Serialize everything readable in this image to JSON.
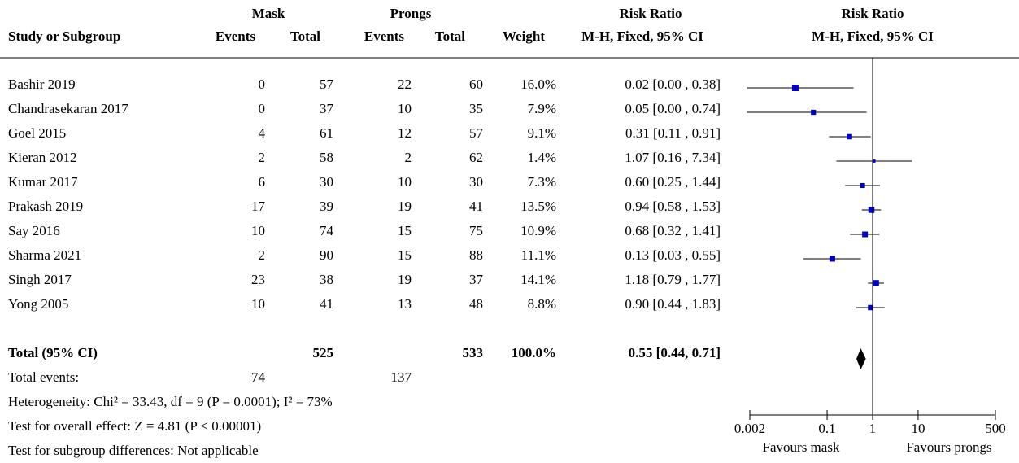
{
  "chart_data": {
    "type": "forest",
    "headers": {
      "group1": "Mask",
      "group2": "Prongs",
      "rr_table": "Risk Ratio",
      "rr_plot": "Risk Ratio",
      "study": "Study or Subgroup",
      "events1": "Events",
      "total1": "Total",
      "events2": "Events",
      "total2": "Total",
      "weight": "Weight",
      "method_table": "M-H, Fixed, 95% CI",
      "method_plot": "M-H, Fixed, 95% CI"
    },
    "studies": [
      {
        "name": "Bashir 2019",
        "events1": 0,
        "total1": 57,
        "events2": 22,
        "total2": 60,
        "weight": 16.0,
        "weight_label": "16.0%",
        "rr": 0.02,
        "ci_low": 0.0,
        "ci_high": 0.38,
        "ci_label": "0.02 [0.00 , 0.38]"
      },
      {
        "name": "Chandrasekaran 2017",
        "events1": 0,
        "total1": 37,
        "events2": 10,
        "total2": 35,
        "weight": 7.9,
        "weight_label": "7.9%",
        "rr": 0.05,
        "ci_low": 0.0,
        "ci_high": 0.74,
        "ci_label": "0.05 [0.00 , 0.74]"
      },
      {
        "name": "Goel 2015",
        "events1": 4,
        "total1": 61,
        "events2": 12,
        "total2": 57,
        "weight": 9.1,
        "weight_label": "9.1%",
        "rr": 0.31,
        "ci_low": 0.11,
        "ci_high": 0.91,
        "ci_label": "0.31 [0.11 , 0.91]"
      },
      {
        "name": "Kieran 2012",
        "events1": 2,
        "total1": 58,
        "events2": 2,
        "total2": 62,
        "weight": 1.4,
        "weight_label": "1.4%",
        "rr": 1.07,
        "ci_low": 0.16,
        "ci_high": 7.34,
        "ci_label": "1.07 [0.16 , 7.34]"
      },
      {
        "name": "Kumar 2017",
        "events1": 6,
        "total1": 30,
        "events2": 10,
        "total2": 30,
        "weight": 7.3,
        "weight_label": "7.3%",
        "rr": 0.6,
        "ci_low": 0.25,
        "ci_high": 1.44,
        "ci_label": "0.60 [0.25 , 1.44]"
      },
      {
        "name": "Prakash 2019",
        "events1": 17,
        "total1": 39,
        "events2": 19,
        "total2": 41,
        "weight": 13.5,
        "weight_label": "13.5%",
        "rr": 0.94,
        "ci_low": 0.58,
        "ci_high": 1.53,
        "ci_label": "0.94 [0.58 , 1.53]"
      },
      {
        "name": "Say 2016",
        "events1": 10,
        "total1": 74,
        "events2": 15,
        "total2": 75,
        "weight": 10.9,
        "weight_label": "10.9%",
        "rr": 0.68,
        "ci_low": 0.32,
        "ci_high": 1.41,
        "ci_label": "0.68 [0.32 , 1.41]"
      },
      {
        "name": "Sharma 2021",
        "events1": 2,
        "total1": 90,
        "events2": 15,
        "total2": 88,
        "weight": 11.1,
        "weight_label": "11.1%",
        "rr": 0.13,
        "ci_low": 0.03,
        "ci_high": 0.55,
        "ci_label": "0.13 [0.03 , 0.55]"
      },
      {
        "name": "Singh 2017",
        "events1": 23,
        "total1": 38,
        "events2": 19,
        "total2": 37,
        "weight": 14.1,
        "weight_label": "14.1%",
        "rr": 1.18,
        "ci_low": 0.79,
        "ci_high": 1.77,
        "ci_label": "1.18 [0.79 , 1.77]"
      },
      {
        "name": "Yong 2005",
        "events1": 10,
        "total1": 41,
        "events2": 13,
        "total2": 48,
        "weight": 8.8,
        "weight_label": "8.8%",
        "rr": 0.9,
        "ci_low": 0.44,
        "ci_high": 1.83,
        "ci_label": "0.90 [0.44 , 1.83]"
      }
    ],
    "total": {
      "name": "Total (95% CI)",
      "total1": 525,
      "total2": 533,
      "weight": 100.0,
      "weight_label": "100.0%",
      "rr": 0.55,
      "ci_low": 0.44,
      "ci_high": 0.71,
      "ci_label": "0.55 [0.44, 0.71]"
    },
    "total_events": {
      "name": "Total events:",
      "events1": 74,
      "events2": 137
    },
    "notes": [
      "Heterogeneity: Chi² = 33.43, df = 9 (P = 0.0001); I² = 73%",
      "Test for overall effect: Z = 4.81 (P < 0.00001)",
      "Test for subgroup differences: Not applicable"
    ],
    "xlim": [
      0.002,
      500
    ],
    "xticks": [
      0.002,
      0.1,
      1,
      10,
      500
    ],
    "log_x": true,
    "xlabel_left": "Favours mask",
    "xlabel_right": "Favours prongs",
    "color": "#0000c8"
  }
}
